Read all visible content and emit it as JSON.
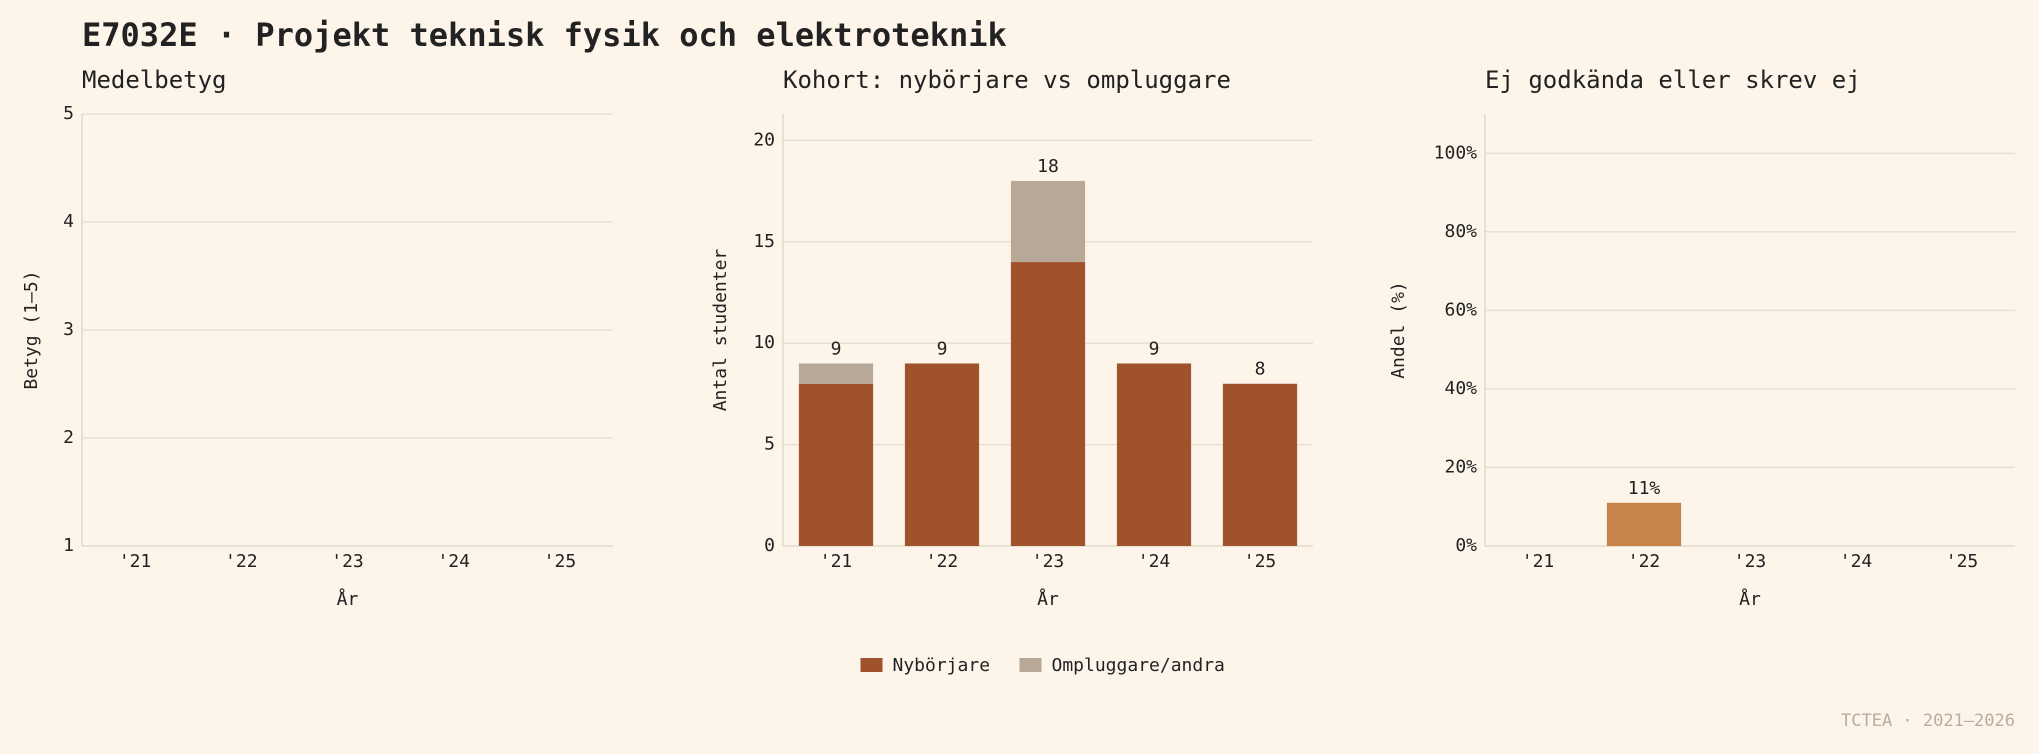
{
  "title": "E7032E · Projekt teknisk fysik och elektroteknik",
  "footer": "TCTEA · 2021–2026",
  "chart_data": [
    {
      "type": "line",
      "title": "Medelbetyg",
      "xlabel": "År",
      "ylabel": "Betyg (1–5)",
      "categories": [
        "'21",
        "'22",
        "'23",
        "'24",
        "'25"
      ],
      "values": [
        null,
        null,
        null,
        null,
        null
      ],
      "ylim": [
        1,
        5
      ],
      "yticks": [
        1,
        2,
        3,
        4,
        5
      ],
      "grid": true
    },
    {
      "type": "bar",
      "title": "Kohort: nybörjare vs ompluggare",
      "xlabel": "År",
      "ylabel": "Antal studenter",
      "categories": [
        "'21",
        "'22",
        "'23",
        "'24",
        "'25"
      ],
      "series": [
        {
          "name": "Nybörjare",
          "color": "#a0522d",
          "values": [
            8,
            9,
            14,
            9,
            8
          ]
        },
        {
          "name": "Ompluggare/andra",
          "color": "#b8a898",
          "values": [
            1,
            0,
            4,
            0,
            0
          ]
        }
      ],
      "totals": [
        9,
        9,
        18,
        9,
        8
      ],
      "ylim": [
        0,
        21.3
      ],
      "yticks": [
        0,
        5,
        10,
        15,
        20
      ],
      "grid": true,
      "legend": "lower center"
    },
    {
      "type": "bar",
      "title": "Ej godkända eller skrev ej",
      "xlabel": "År",
      "ylabel": "Andel (%)",
      "categories": [
        "'21",
        "'22",
        "'23",
        "'24",
        "'25"
      ],
      "values": [
        null,
        11,
        null,
        null,
        null
      ],
      "value_labels": [
        null,
        "11%",
        null,
        null,
        null
      ],
      "color": "#c8834b",
      "ylim": [
        0,
        110
      ],
      "yticks": [
        {
          "value": 0,
          "label": "0%"
        },
        {
          "value": 20,
          "label": "20%"
        },
        {
          "value": 40,
          "label": "40%"
        },
        {
          "value": 60,
          "label": "60%"
        },
        {
          "value": 80,
          "label": "80%"
        },
        {
          "value": 100,
          "label": "100%"
        }
      ],
      "grid": true
    }
  ]
}
